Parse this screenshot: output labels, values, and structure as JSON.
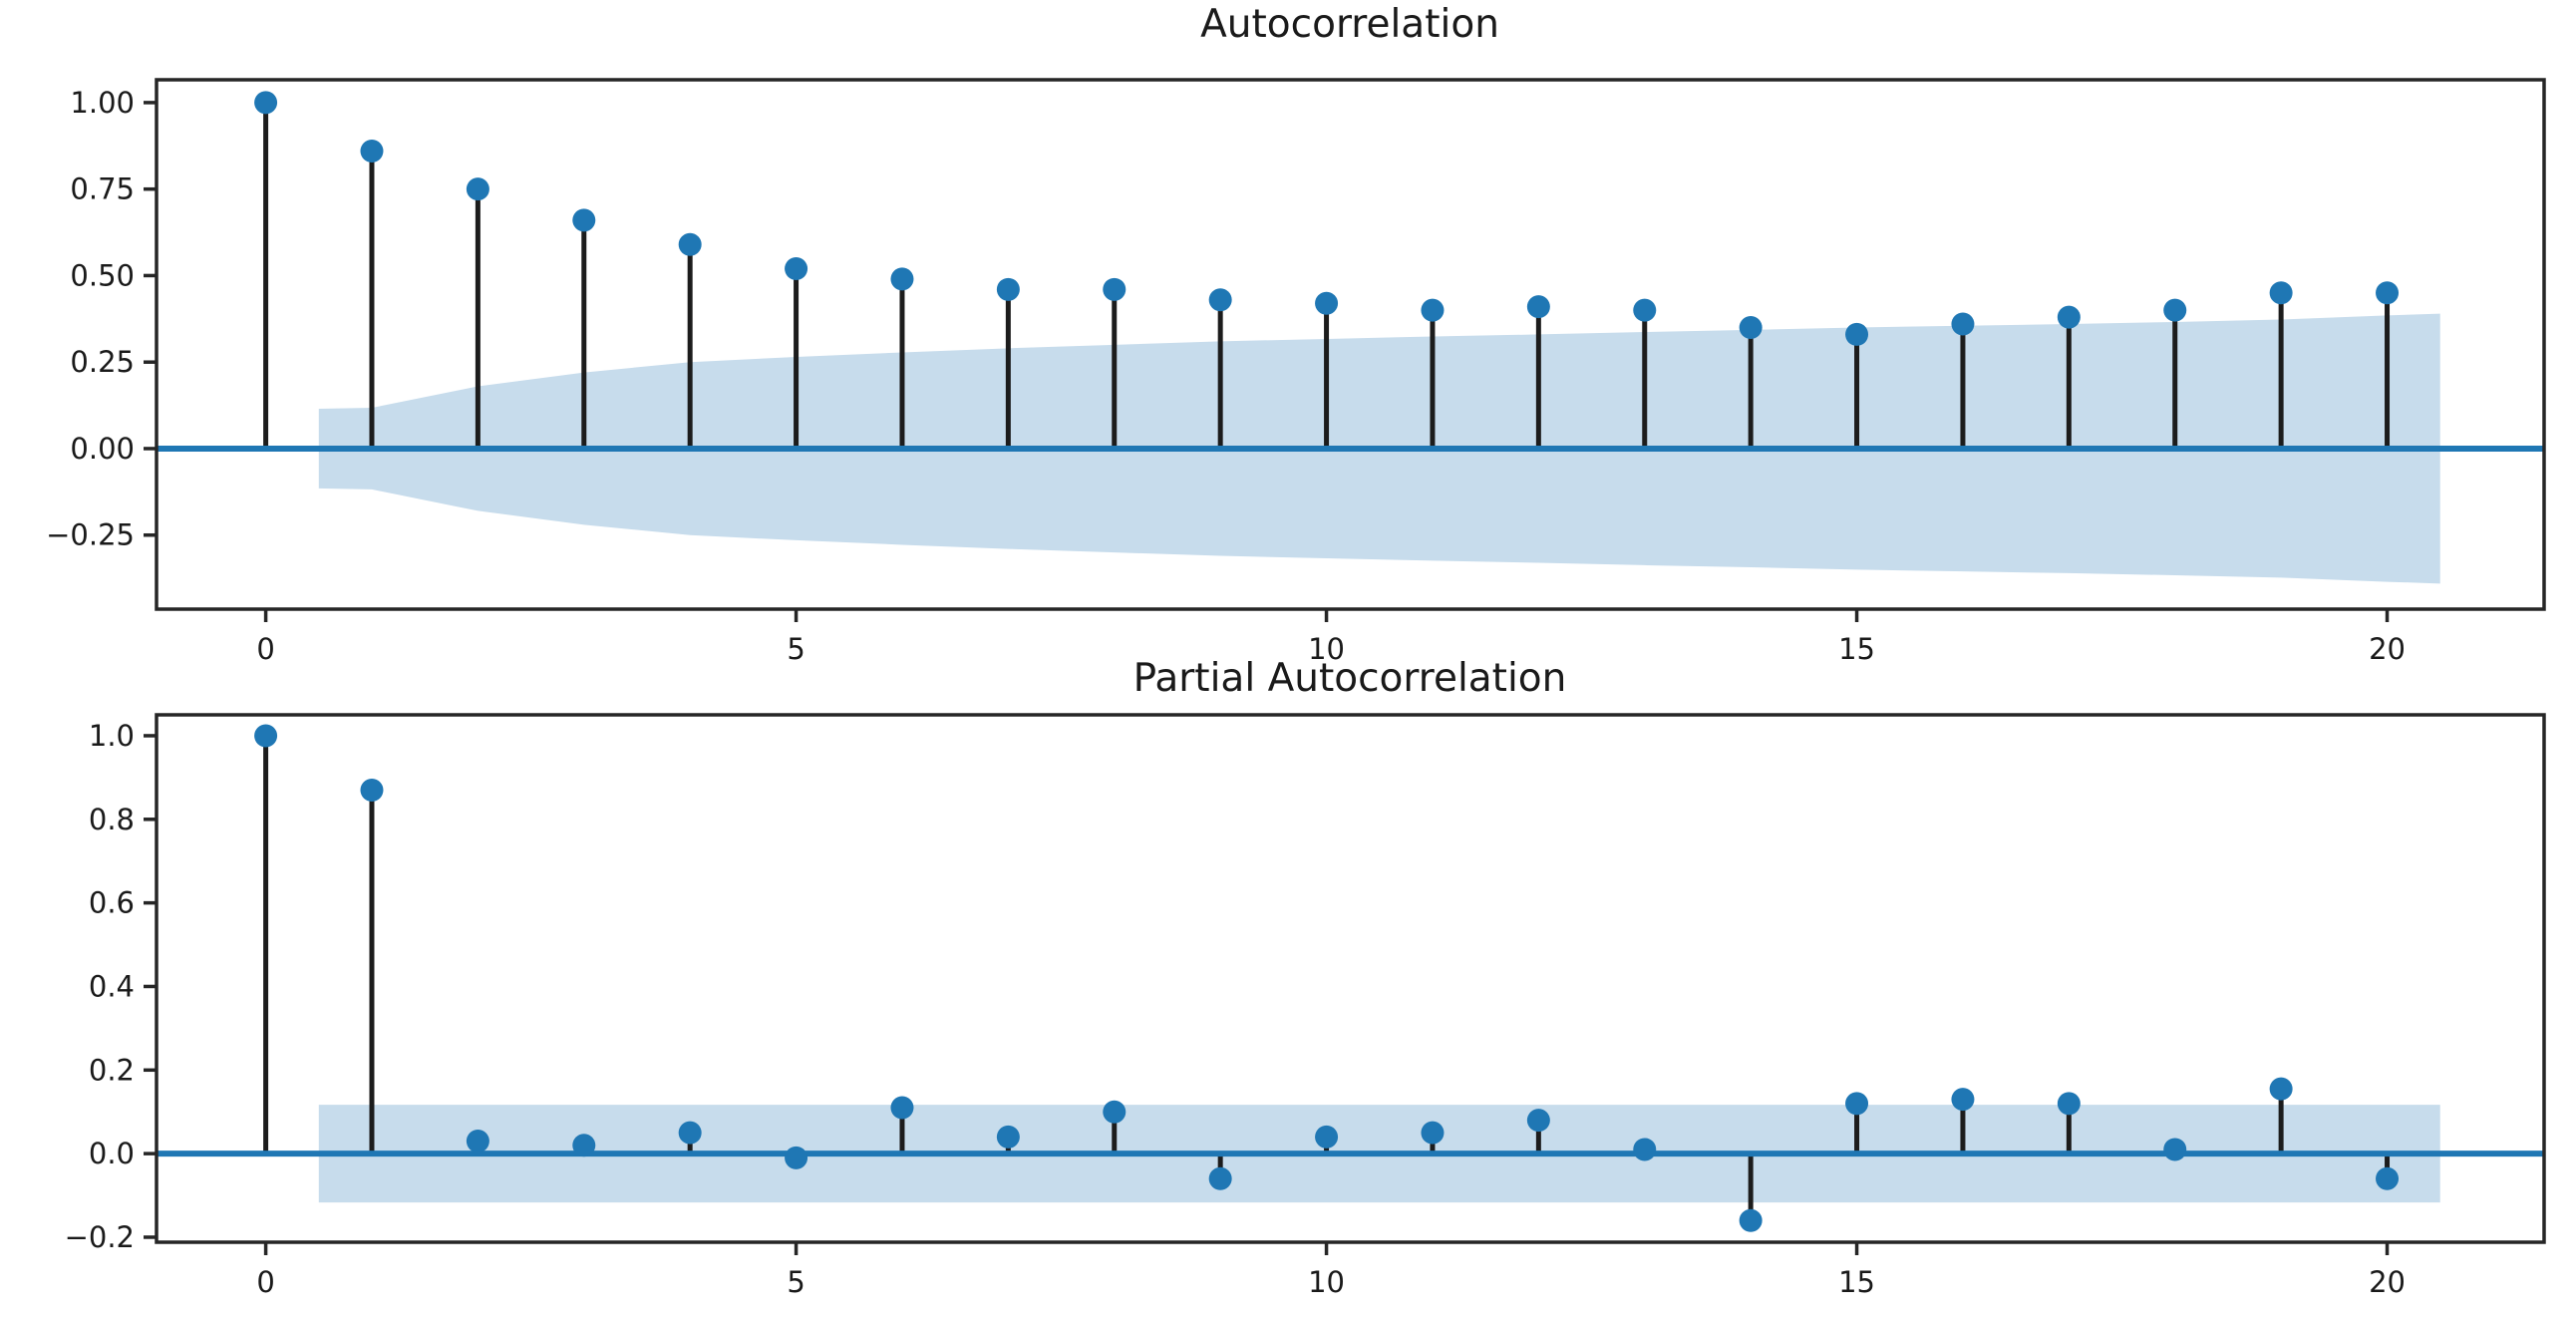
{
  "figure": {
    "background": "#ffffff"
  },
  "colors": {
    "accent": "#1f77b4",
    "stem": "#1c1c1c",
    "band": "#c7dcec",
    "spine": "#262626",
    "tick_text": "#1a1a1a"
  },
  "chart_data": [
    {
      "type": "stem",
      "title": "Autocorrelation",
      "xlabel": "",
      "ylabel": "",
      "grid": false,
      "legend": null,
      "x": [
        0,
        1,
        2,
        3,
        4,
        5,
        6,
        7,
        8,
        9,
        10,
        11,
        12,
        13,
        14,
        15,
        16,
        17,
        18,
        19,
        20
      ],
      "values": [
        1.0,
        0.86,
        0.75,
        0.66,
        0.59,
        0.52,
        0.49,
        0.46,
        0.46,
        0.43,
        0.42,
        0.4,
        0.41,
        0.4,
        0.35,
        0.33,
        0.36,
        0.38,
        0.4,
        0.45,
        0.45
      ],
      "xlim": [
        -1.03,
        21.48
      ],
      "ylim": [
        -0.464,
        1.066
      ],
      "xticks": [
        0,
        5,
        10,
        15,
        20
      ],
      "xtick_labels": [
        "0",
        "5",
        "10",
        "15",
        "20"
      ],
      "yticks": [
        1.0,
        0.75,
        0.5,
        0.25,
        0.0,
        -0.25
      ],
      "ytick_labels": [
        "1.00",
        "0.75",
        "0.50",
        "0.25",
        "0.00",
        "−0.25"
      ],
      "zero_line": 0,
      "conf_band": {
        "x": [
          0.5,
          1,
          2,
          3,
          4,
          5,
          6,
          7,
          8,
          9,
          10,
          11,
          12,
          13,
          14,
          15,
          16,
          17,
          18,
          19,
          20,
          20.5
        ],
        "upper": [
          0.115,
          0.118,
          0.18,
          0.22,
          0.25,
          0.265,
          0.278,
          0.29,
          0.3,
          0.31,
          0.317,
          0.324,
          0.33,
          0.337,
          0.343,
          0.35,
          0.355,
          0.36,
          0.366,
          0.373,
          0.385,
          0.39
        ],
        "lower": [
          -0.115,
          -0.118,
          -0.18,
          -0.22,
          -0.25,
          -0.265,
          -0.278,
          -0.29,
          -0.3,
          -0.31,
          -0.317,
          -0.324,
          -0.33,
          -0.337,
          -0.343,
          -0.35,
          -0.355,
          -0.36,
          -0.366,
          -0.373,
          -0.385,
          -0.39
        ]
      }
    },
    {
      "type": "stem",
      "title": "Partial Autocorrelation",
      "xlabel": "",
      "ylabel": "",
      "grid": false,
      "legend": null,
      "x": [
        0,
        1,
        2,
        3,
        4,
        5,
        6,
        7,
        8,
        9,
        10,
        11,
        12,
        13,
        14,
        15,
        16,
        17,
        18,
        19,
        20
      ],
      "values": [
        1.0,
        0.87,
        0.03,
        0.02,
        0.05,
        -0.01,
        0.11,
        0.04,
        0.1,
        -0.06,
        0.04,
        0.05,
        0.08,
        0.01,
        -0.16,
        0.12,
        0.13,
        0.12,
        0.01,
        0.155,
        -0.06
      ],
      "xlim": [
        -1.03,
        21.48
      ],
      "ylim": [
        -0.212,
        1.05
      ],
      "xticks": [
        0,
        5,
        10,
        15,
        20
      ],
      "xtick_labels": [
        "0",
        "5",
        "10",
        "15",
        "20"
      ],
      "yticks": [
        1.0,
        0.8,
        0.6,
        0.4,
        0.2,
        0.0,
        -0.2
      ],
      "ytick_labels": [
        "1.0",
        "0.8",
        "0.6",
        "0.4",
        "0.2",
        "0.0",
        "−0.2"
      ],
      "zero_line": 0,
      "conf_band": {
        "x": [
          0.5,
          20.5
        ],
        "upper": [
          0.117,
          0.117
        ],
        "lower": [
          -0.117,
          -0.117
        ]
      }
    }
  ]
}
